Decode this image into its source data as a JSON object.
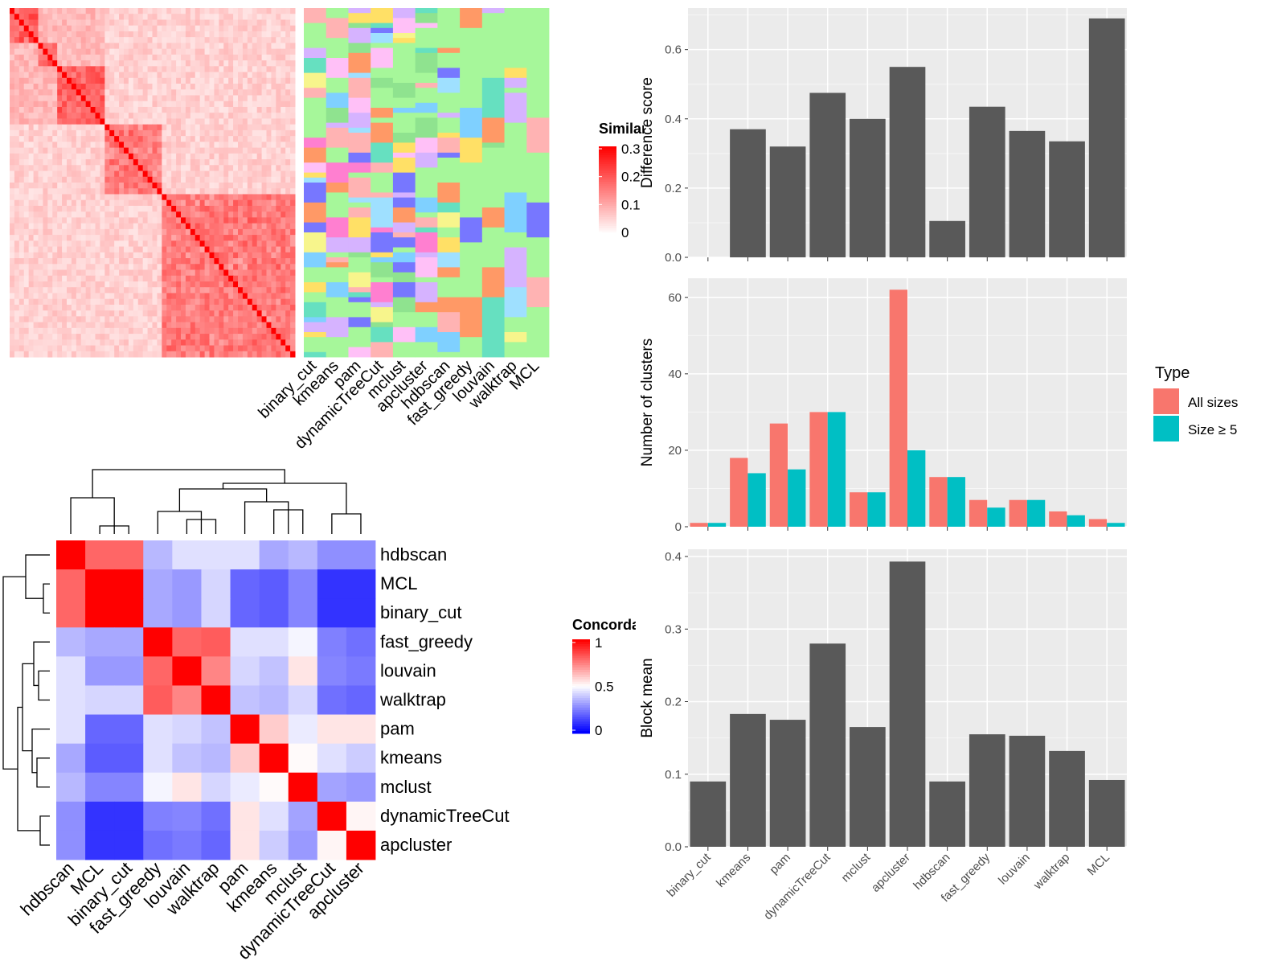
{
  "chart_data": [
    {
      "id": "similarity-heatmap",
      "type": "heatmap",
      "legend": {
        "title": "Similarity",
        "ticks": [
          "0",
          "0.1",
          "0.2",
          "0.3"
        ],
        "range": [
          0,
          0.3
        ],
        "placement": "right"
      },
      "colors": {
        "low": "#ffffff",
        "high": "#ff0000"
      }
    },
    {
      "id": "cluster-assignment-heatmap",
      "type": "heatmap",
      "columns": [
        "binary_cut",
        "kmeans",
        "pam",
        "dynamicTreeCut",
        "mclust",
        "apcluster",
        "hdbscan",
        "fast_greedy",
        "louvain",
        "walktrap",
        "MCL"
      ],
      "palette": [
        "#ffc0f7",
        "#8fe38f",
        "#7fd0ff",
        "#ffb3b3",
        "#d6b3ff",
        "#f7f58c",
        "#ff7fd0",
        "#9fe0ff",
        "#ff9966",
        "#7777ff",
        "#ffe066",
        "#66e0c0"
      ],
      "background_color": "#a6f79a"
    },
    {
      "id": "concordance-heatmap",
      "type": "heatmap",
      "rows": [
        "hdbscan",
        "MCL",
        "binary_cut",
        "fast_greedy",
        "louvain",
        "walktrap",
        "pam",
        "kmeans",
        "mclust",
        "dynamicTreeCut",
        "apcluster"
      ],
      "columns": [
        "hdbscan",
        "MCL",
        "binary_cut",
        "fast_greedy",
        "louvain",
        "walktrap",
        "pam",
        "kmeans",
        "mclust",
        "dynamicTreeCut",
        "apcluster"
      ],
      "values": [
        [
          1.0,
          0.8,
          0.8,
          0.36,
          0.44,
          0.44,
          0.44,
          0.33,
          0.36,
          0.28,
          0.28
        ],
        [
          0.8,
          1.0,
          1.0,
          0.33,
          0.3,
          0.42,
          0.2,
          0.18,
          0.26,
          0.1,
          0.1
        ],
        [
          0.8,
          1.0,
          1.0,
          0.33,
          0.3,
          0.42,
          0.2,
          0.18,
          0.26,
          0.1,
          0.1
        ],
        [
          0.36,
          0.33,
          0.33,
          1.0,
          0.8,
          0.82,
          0.44,
          0.44,
          0.48,
          0.25,
          0.22
        ],
        [
          0.44,
          0.3,
          0.3,
          0.8,
          1.0,
          0.74,
          0.42,
          0.38,
          0.55,
          0.26,
          0.24
        ],
        [
          0.44,
          0.42,
          0.42,
          0.82,
          0.74,
          1.0,
          0.38,
          0.36,
          0.42,
          0.22,
          0.2
        ],
        [
          0.44,
          0.2,
          0.2,
          0.44,
          0.42,
          0.38,
          1.0,
          0.6,
          0.46,
          0.55,
          0.55
        ],
        [
          0.33,
          0.18,
          0.18,
          0.44,
          0.38,
          0.36,
          0.6,
          1.0,
          0.51,
          0.44,
          0.4
        ],
        [
          0.36,
          0.26,
          0.26,
          0.48,
          0.55,
          0.42,
          0.46,
          0.51,
          1.0,
          0.32,
          0.3
        ],
        [
          0.28,
          0.1,
          0.1,
          0.25,
          0.26,
          0.22,
          0.55,
          0.44,
          0.32,
          1.0,
          0.52
        ],
        [
          0.28,
          0.1,
          0.1,
          0.22,
          0.24,
          0.2,
          0.55,
          0.4,
          0.3,
          0.52,
          1.0
        ]
      ],
      "legend": {
        "title": "Concordance",
        "ticks": [
          "0",
          "0.5",
          "1"
        ],
        "range": [
          0,
          1
        ],
        "placement": "right"
      },
      "colors": {
        "low": "#0000ff",
        "mid": "#ffffff",
        "high": "#ff0000"
      }
    },
    {
      "id": "difference-score",
      "type": "bar",
      "categories": [
        "binary_cut",
        "kmeans",
        "pam",
        "dynamicTreeCut",
        "mclust",
        "apcluster",
        "hdbscan",
        "fast_greedy",
        "louvain",
        "walktrap",
        "MCL"
      ],
      "values": [
        0.0,
        0.37,
        0.32,
        0.475,
        0.4,
        0.55,
        0.105,
        0.435,
        0.365,
        0.335,
        0.69
      ],
      "ylabel": "Difference score",
      "ylim": [
        0,
        0.72
      ],
      "yticks": [
        "0.0",
        "0.2",
        "0.4",
        "0.6"
      ],
      "color": "#595959"
    },
    {
      "id": "number-of-clusters",
      "type": "bar",
      "categories": [
        "binary_cut",
        "kmeans",
        "pam",
        "dynamicTreeCut",
        "mclust",
        "apcluster",
        "hdbscan",
        "fast_greedy",
        "louvain",
        "walktrap",
        "MCL"
      ],
      "series": [
        {
          "name": "All sizes",
          "values": [
            1,
            18,
            27,
            30,
            9,
            62,
            13,
            7,
            7,
            4,
            2
          ],
          "color": "#f8766d"
        },
        {
          "name": "Size ≥ 5",
          "values": [
            1,
            14,
            15,
            30,
            9,
            20,
            13,
            5,
            7,
            3,
            1
          ],
          "color": "#00bfc4"
        }
      ],
      "ylabel": "Number of clusters",
      "ylim": [
        0,
        65
      ],
      "yticks": [
        "0",
        "20",
        "40",
        "60"
      ],
      "legend": {
        "title": "Type",
        "placement": "right"
      }
    },
    {
      "id": "block-mean",
      "type": "bar",
      "categories": [
        "binary_cut",
        "kmeans",
        "pam",
        "dynamicTreeCut",
        "mclust",
        "apcluster",
        "hdbscan",
        "fast_greedy",
        "louvain",
        "walktrap",
        "MCL"
      ],
      "values": [
        0.09,
        0.183,
        0.175,
        0.28,
        0.165,
        0.393,
        0.09,
        0.155,
        0.153,
        0.132,
        0.092
      ],
      "ylabel": "Block mean",
      "ylim": [
        0,
        0.41
      ],
      "yticks": [
        "0.0",
        "0.1",
        "0.2",
        "0.3",
        "0.4"
      ],
      "color": "#595959"
    }
  ]
}
